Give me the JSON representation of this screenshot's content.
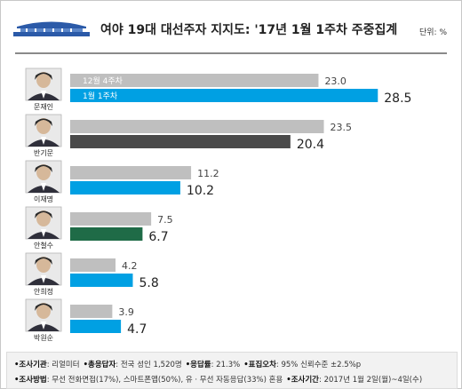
{
  "header": {
    "title": "여야 19대 대선주자 지지도: '17년 1월 1주차 주중집계",
    "unit": "단위: %"
  },
  "colors": {
    "prev": "#bfbfbf",
    "blue": "#00a0e3",
    "dark": "#4a4a4a",
    "green": "#1f6b47"
  },
  "chart_data": {
    "type": "bar",
    "categories": [
      "문재인",
      "반기문",
      "이재명",
      "안철수",
      "안희정",
      "박원순"
    ],
    "series": [
      {
        "name": "12월 4주차",
        "values": [
          23.0,
          23.5,
          11.2,
          7.5,
          4.2,
          3.9
        ],
        "labels": [
          "23.0",
          "23.5",
          "11.2",
          "7.5",
          "4.2",
          "3.9"
        ]
      },
      {
        "name": "1월 1주차",
        "values": [
          28.5,
          20.4,
          10.2,
          6.7,
          5.8,
          4.7
        ],
        "labels": [
          "28.5",
          "20.4",
          "10.2",
          "6.7",
          "5.8",
          "4.7"
        ]
      }
    ],
    "current_colors": [
      "blue",
      "dark",
      "blue",
      "green",
      "blue",
      "blue"
    ],
    "orientation": "horizontal",
    "xlim": [
      0,
      32
    ],
    "grid": false
  },
  "footer": {
    "line1": [
      {
        "k": "•조사기관",
        "v": ": 리얼미터"
      },
      {
        "k": "•총응답자",
        "v": ": 전국 성인 1,520명"
      },
      {
        "k": "•응답률",
        "v": ": 21.3%"
      },
      {
        "k": "•표집오차",
        "v": ": 95% 신뢰수준 ±2.5%p"
      }
    ],
    "line2": [
      {
        "k": "•조사방법",
        "v": ": 무선 전화면접(17%), 스마트폰앱(50%), 유 · 무선 자동응답(33%) 혼용"
      },
      {
        "k": "•조사기간",
        "v": ": 2017년 1월 2일(월)~4일(수)"
      }
    ]
  }
}
